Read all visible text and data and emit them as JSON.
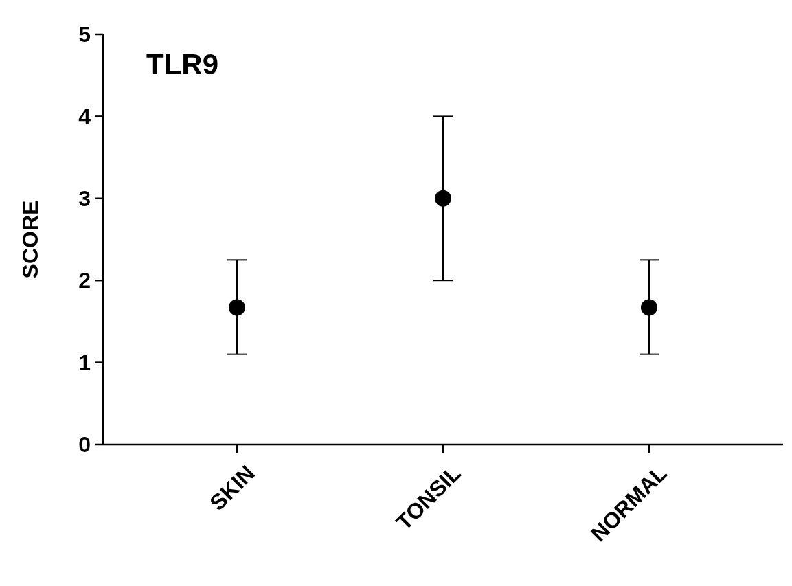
{
  "chart_data": {
    "type": "scatter",
    "title": "TLR9",
    "ylabel": "SCORE",
    "categories": [
      "SKIN",
      "TONSIL",
      "NORMAL"
    ],
    "values": [
      1.67,
      3,
      1.67
    ],
    "errors": [
      [
        1.1,
        2.25
      ],
      [
        2,
        4
      ],
      [
        1.1,
        2.25
      ]
    ],
    "color": "#000000",
    "marker": "circle",
    "ylim": [
      0,
      5
    ],
    "yticks": [
      0,
      1,
      2,
      3,
      4,
      5
    ],
    "grid": false
  }
}
